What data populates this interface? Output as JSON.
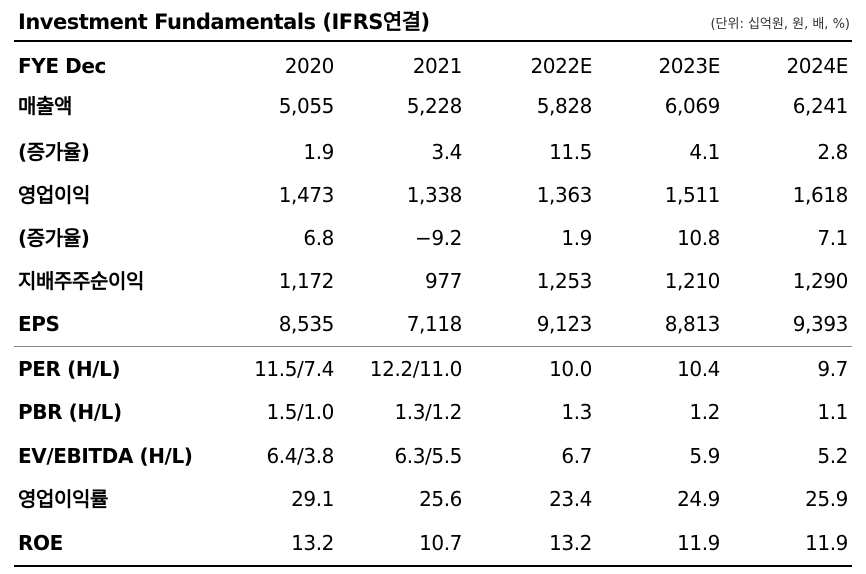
{
  "header": {
    "title": "Investment Fundamentals (IFRS연결)",
    "unit": "(단위: 십억원, 원, 배, %)"
  },
  "table": {
    "columns": [
      "FYE Dec",
      "2020",
      "2021",
      "2022E",
      "2023E",
      "2024E"
    ],
    "rows": [
      [
        "매출액",
        "5,055",
        "5,228",
        "5,828",
        "6,069",
        "6,241"
      ],
      [
        "(증가율)",
        "1.9",
        "3.4",
        "11.5",
        "4.1",
        "2.8"
      ],
      [
        "영업이익",
        "1,473",
        "1,338",
        "1,363",
        "1,511",
        "1,618"
      ],
      [
        "(증가율)",
        "6.8",
        "−9.2",
        "1.9",
        "10.8",
        "7.1"
      ],
      [
        "지배주주순이익",
        "1,172",
        "977",
        "1,253",
        "1,210",
        "1,290"
      ],
      [
        "EPS",
        "8,535",
        "7,118",
        "9,123",
        "8,813",
        "9,393"
      ],
      [
        "PER (H/L)",
        "11.5/7.4",
        "12.2/11.0",
        "10.0",
        "10.4",
        "9.7"
      ],
      [
        "PBR (H/L)",
        "1.5/1.0",
        "1.3/1.2",
        "1.3",
        "1.2",
        "1.1"
      ],
      [
        "EV/EBITDA (H/L)",
        "6.4/3.8",
        "6.3/5.5",
        "6.7",
        "5.9",
        "5.2"
      ],
      [
        "영업이익률",
        "29.1",
        "25.6",
        "23.4",
        "24.9",
        "25.9"
      ],
      [
        "ROE",
        "13.2",
        "10.7",
        "13.2",
        "11.9",
        "11.9"
      ]
    ]
  }
}
